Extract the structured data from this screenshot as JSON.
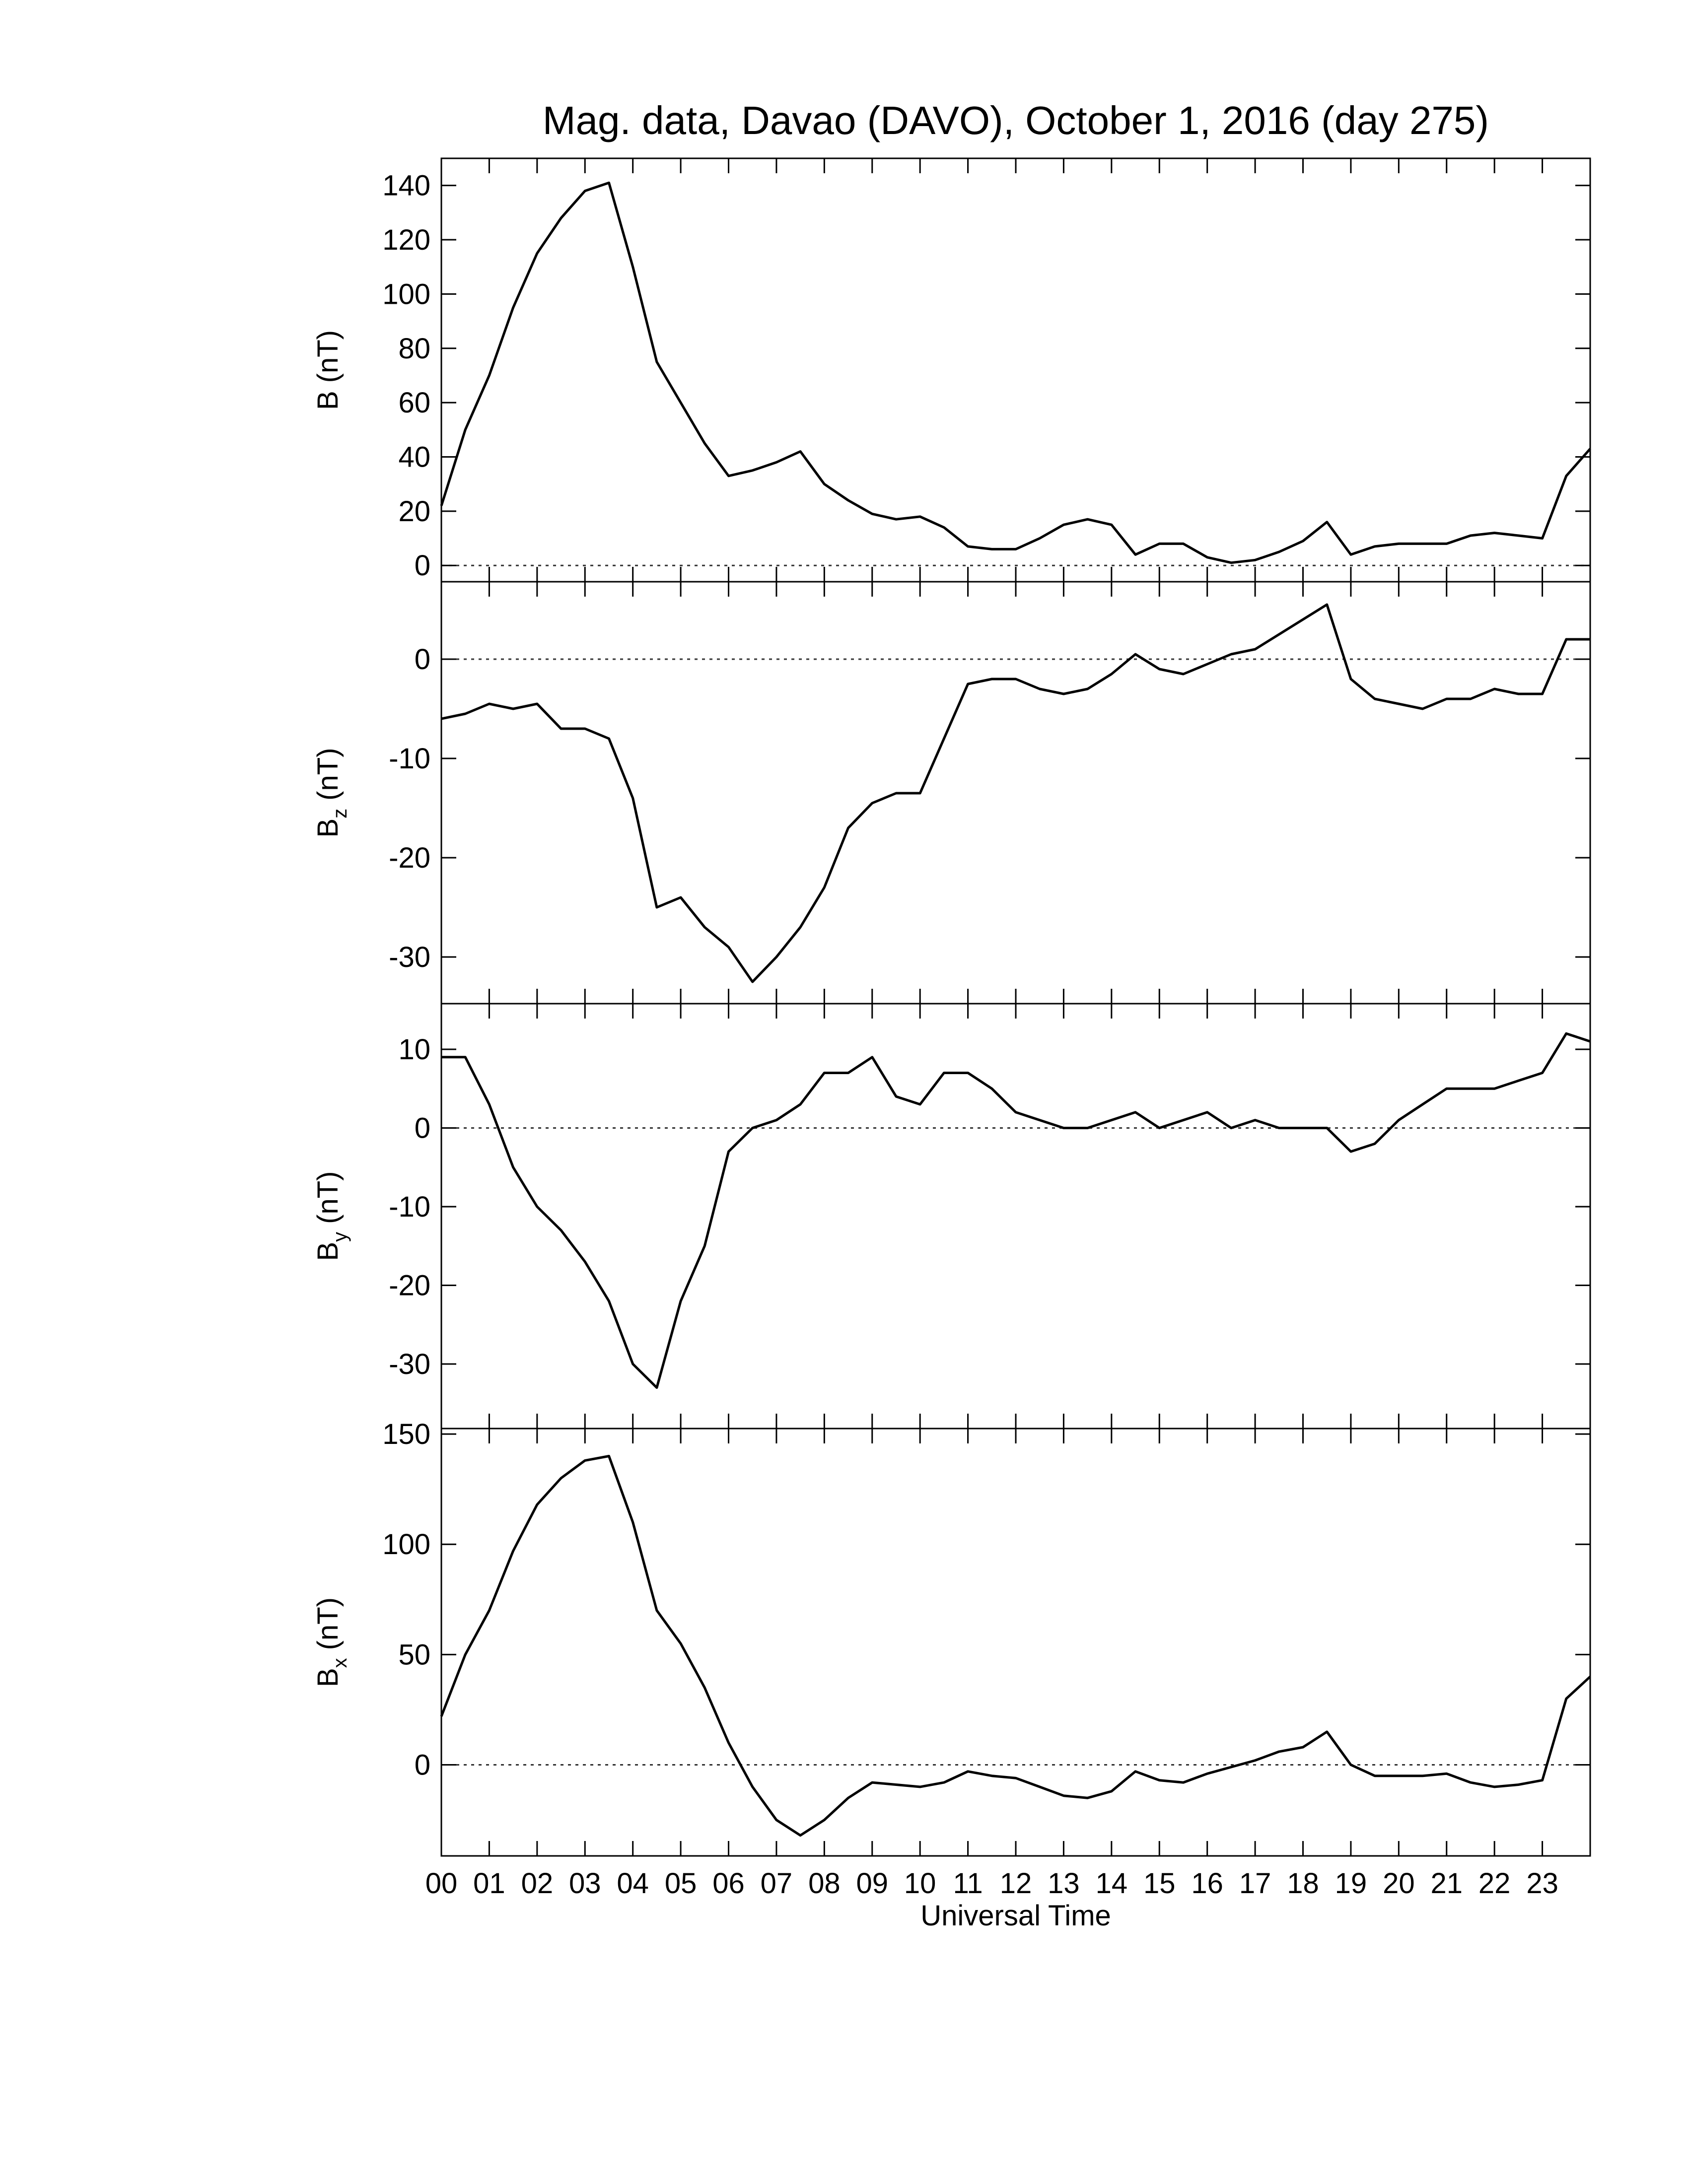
{
  "chart_data": [
    {
      "type": "line",
      "title": "Mag. data, Davao (DAVO), October 1, 2016 (day 275)",
      "ylabel": "B",
      "ylabel_unit": "(nT)",
      "color": "#000000",
      "xlim": [
        0,
        24
      ],
      "ylim": [
        -6,
        150
      ],
      "yticks": [
        0,
        20,
        40,
        60,
        80,
        100,
        120,
        140
      ],
      "x": [
        0,
        0.5,
        1,
        1.5,
        2,
        2.5,
        3,
        3.5,
        4,
        4.5,
        5,
        5.5,
        6,
        6.5,
        7,
        7.5,
        8,
        8.5,
        9,
        9.5,
        10,
        10.5,
        11,
        11.5,
        12,
        12.5,
        13,
        13.5,
        14,
        14.5,
        15,
        15.5,
        16,
        16.5,
        17,
        17.5,
        18,
        18.5,
        19,
        19.5,
        20,
        20.5,
        21,
        21.5,
        22,
        22.5,
        23,
        23.5,
        24
      ],
      "values": [
        22,
        50,
        70,
        95,
        115,
        128,
        138,
        141,
        110,
        75,
        60,
        45,
        33,
        35,
        38,
        42,
        30,
        24,
        19,
        17,
        18,
        14,
        7,
        6,
        6,
        10,
        15,
        17,
        15,
        4,
        8,
        8,
        3,
        1,
        2,
        5,
        9,
        16,
        4,
        7,
        8,
        8,
        8,
        11,
        12,
        11,
        10,
        33,
        43
      ]
    },
    {
      "type": "line",
      "ylabel": "B",
      "ylabel_sub": "z",
      "ylabel_unit": "(nT)",
      "color": "#000000",
      "xlim": [
        0,
        24
      ],
      "ylim": [
        -34.7,
        7.8
      ],
      "yticks": [
        -30,
        -20,
        -10,
        0
      ],
      "x": [
        0,
        0.5,
        1,
        1.5,
        2,
        2.5,
        3,
        3.5,
        4,
        4.5,
        5,
        5.5,
        6,
        6.5,
        7,
        7.5,
        8,
        8.5,
        9,
        9.5,
        10,
        10.5,
        11,
        11.5,
        12,
        12.5,
        13,
        13.5,
        14,
        14.5,
        15,
        15.5,
        16,
        16.5,
        17,
        17.5,
        18,
        18.5,
        19,
        19.5,
        20,
        20.5,
        21,
        21.5,
        22,
        22.5,
        23,
        23.5,
        24
      ],
      "values": [
        -6,
        -5.5,
        -4.5,
        -5,
        -4.5,
        -7,
        -7,
        -8,
        -14,
        -25,
        -24,
        -27,
        -29,
        -32.5,
        -30,
        -27,
        -23,
        -17,
        -14.5,
        -13.5,
        -13.5,
        -8,
        -2.5,
        -2,
        -2,
        -3,
        -3.5,
        -3,
        -1.5,
        0.5,
        -1,
        -1.5,
        -0.5,
        0.5,
        1,
        2.5,
        4,
        5.5,
        -2,
        -4,
        -4.5,
        -5,
        -4,
        -4,
        -3,
        -3.5,
        -3.5,
        2,
        2
      ]
    },
    {
      "type": "line",
      "ylabel": "B",
      "ylabel_sub": "y",
      "ylabel_unit": "(nT)",
      "color": "#000000",
      "xlim": [
        0,
        24
      ],
      "ylim": [
        -38.2,
        15.8
      ],
      "yticks": [
        -30,
        -20,
        -10,
        0,
        10
      ],
      "x": [
        0,
        0.5,
        1,
        1.5,
        2,
        2.5,
        3,
        3.5,
        4,
        4.5,
        5,
        5.5,
        6,
        6.5,
        7,
        7.5,
        8,
        8.5,
        9,
        9.5,
        10,
        10.5,
        11,
        11.5,
        12,
        12.5,
        13,
        13.5,
        14,
        14.5,
        15,
        15.5,
        16,
        16.5,
        17,
        17.5,
        18,
        18.5,
        19,
        19.5,
        20,
        20.5,
        21,
        21.5,
        22,
        22.5,
        23,
        23.5,
        24
      ],
      "values": [
        9,
        9,
        3,
        -5,
        -10,
        -13,
        -17,
        -22,
        -30,
        -33,
        -22,
        -15,
        -3,
        0,
        1,
        3,
        7,
        7,
        9,
        4,
        3,
        7,
        7,
        5,
        2,
        1,
        0,
        0,
        1,
        2,
        0,
        1,
        2,
        0,
        1,
        0,
        0,
        0,
        -3,
        -2,
        1,
        3,
        5,
        5,
        5,
        6,
        7,
        12,
        11
      ]
    },
    {
      "type": "line",
      "ylabel": "B",
      "ylabel_sub": "x",
      "ylabel_unit": "(nT)",
      "color": "#000000",
      "xlabel": "Universal Time",
      "xlim": [
        0,
        24
      ],
      "ylim": [
        -41.3,
        152.5
      ],
      "yticks": [
        0,
        50,
        100,
        150
      ],
      "xticks": [
        {
          "value": 0,
          "label": "00"
        },
        {
          "value": 1,
          "label": "01"
        },
        {
          "value": 2,
          "label": "02"
        },
        {
          "value": 3,
          "label": "03"
        },
        {
          "value": 4,
          "label": "04"
        },
        {
          "value": 5,
          "label": "05"
        },
        {
          "value": 6,
          "label": "06"
        },
        {
          "value": 7,
          "label": "07"
        },
        {
          "value": 8,
          "label": "08"
        },
        {
          "value": 9,
          "label": "09"
        },
        {
          "value": 10,
          "label": "10"
        },
        {
          "value": 11,
          "label": "11"
        },
        {
          "value": 12,
          "label": "12"
        },
        {
          "value": 13,
          "label": "13"
        },
        {
          "value": 14,
          "label": "14"
        },
        {
          "value": 15,
          "label": "15"
        },
        {
          "value": 16,
          "label": "16"
        },
        {
          "value": 17,
          "label": "17"
        },
        {
          "value": 18,
          "label": "18"
        },
        {
          "value": 19,
          "label": "19"
        },
        {
          "value": 20,
          "label": "20"
        },
        {
          "value": 21,
          "label": "21"
        },
        {
          "value": 22,
          "label": "22"
        },
        {
          "value": 23,
          "label": "23"
        }
      ],
      "x": [
        0,
        0.5,
        1,
        1.5,
        2,
        2.5,
        3,
        3.5,
        4,
        4.5,
        5,
        5.5,
        6,
        6.5,
        7,
        7.5,
        8,
        8.5,
        9,
        9.5,
        10,
        10.5,
        11,
        11.5,
        12,
        12.5,
        13,
        13.5,
        14,
        14.5,
        15,
        15.5,
        16,
        16.5,
        17,
        17.5,
        18,
        18.5,
        19,
        19.5,
        20,
        20.5,
        21,
        21.5,
        22,
        22.5,
        23,
        23.5,
        24
      ],
      "values": [
        22,
        50,
        70,
        97,
        118,
        130,
        138,
        140,
        110,
        70,
        55,
        35,
        10,
        -10,
        -25,
        -32,
        -25,
        -15,
        -8,
        -9,
        -10,
        -8,
        -3,
        -5,
        -6,
        -10,
        -14,
        -15,
        -12,
        -3,
        -7,
        -8,
        -4,
        -1,
        2,
        6,
        8,
        15,
        0,
        -5,
        -5,
        -5,
        -4,
        -8,
        -10,
        -9,
        -7,
        30,
        40
      ]
    }
  ]
}
